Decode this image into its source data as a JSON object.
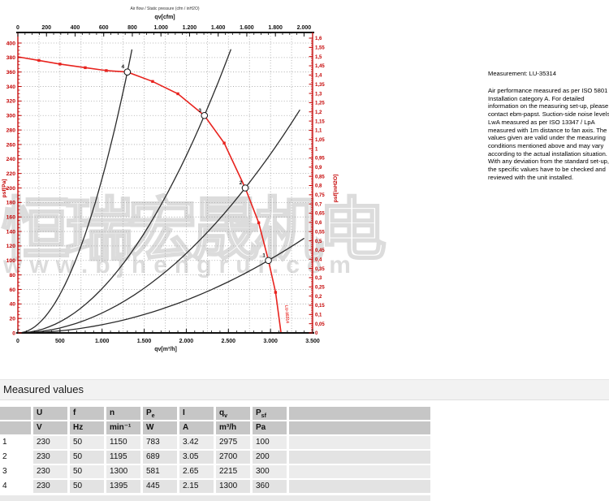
{
  "colors": {
    "axis_red": "#c40000",
    "curve_red": "#e8231e",
    "curve_black": "#2b2b2b",
    "grid": "#a0a0a0",
    "table_header_bg": "#c6c6c6",
    "watermark_gray": "#d4d4d4"
  },
  "watermark": {
    "company": "恒瑞宏晟机电",
    "website": "www.bjhengrui.com"
  },
  "chart_data": {
    "type": "line",
    "subtitle": "Air flow / Static pressure (cfm / inH2O)",
    "axes": {
      "top": {
        "label": "qv[cfm]",
        "min": 0,
        "max": 2000,
        "major": 200,
        "minor": 50,
        "tick_labels": [
          "0",
          "200",
          "400",
          "600",
          "800",
          "1.000",
          "1.200",
          "1.400",
          "1.600",
          "1.800",
          "2.000"
        ]
      },
      "bottom": {
        "label": "qv[m³/h]",
        "min": 0,
        "max": 3500,
        "major": 500,
        "minor": 100,
        "tick_labels": [
          "0",
          "500",
          "1.000",
          "1.500",
          "2.000",
          "2.500",
          "3.000",
          "3.500"
        ]
      },
      "left": {
        "label": "psf[Pa]",
        "min": 0,
        "max": 400,
        "major": 20,
        "minor": 5,
        "tick_labels": [
          "0",
          "20",
          "40",
          "60",
          "80",
          "100",
          "120",
          "140",
          "160",
          "180",
          "200",
          "220",
          "240",
          "260",
          "280",
          "300",
          "320",
          "340",
          "360",
          "380",
          "400"
        ]
      },
      "right": {
        "label": "psf[inH2O]",
        "min": 0,
        "max": 1.6,
        "major": 0.05,
        "minor": 0.01,
        "tick_labels": [
          "0",
          "0,05",
          "0,1",
          "0,15",
          "0,2",
          "0,25",
          "0,3",
          "0,35",
          "0,4",
          "0,45",
          "0,5",
          "0,55",
          "0,6",
          "0,65",
          "0,7",
          "0,75",
          "0,8",
          "0,85",
          "0,9",
          "0,95",
          "1",
          "1,05",
          "1,1",
          "1,15",
          "1,2",
          "1,25",
          "1,3",
          "1,35",
          "1,4",
          "1,45",
          "1,5",
          "1,55",
          "1,6"
        ]
      }
    },
    "fan_curve": {
      "name": "air-performance-curve",
      "end_label": "LU-35314",
      "points": [
        [
          0,
          381
        ],
        [
          250,
          376
        ],
        [
          500,
          371
        ],
        [
          800,
          366
        ],
        [
          1050,
          362
        ],
        [
          1300,
          360
        ],
        [
          1600,
          347
        ],
        [
          1900,
          330
        ],
        [
          2215,
          300
        ],
        [
          2450,
          262
        ],
        [
          2700,
          200
        ],
        [
          2860,
          152
        ],
        [
          2975,
          100
        ],
        [
          3060,
          56
        ],
        [
          3125,
          0
        ]
      ],
      "marker_points": [
        [
          250,
          376
        ],
        [
          500,
          371
        ],
        [
          800,
          366
        ],
        [
          1050,
          362
        ],
        [
          1600,
          347
        ],
        [
          1900,
          330
        ],
        [
          2450,
          262
        ],
        [
          2860,
          152
        ],
        [
          3060,
          56
        ]
      ]
    },
    "system_curves": [
      {
        "point": 4,
        "qv": 1300,
        "psf": 360,
        "qv_end": 1355
      },
      {
        "point": 3,
        "qv": 2215,
        "psf": 300,
        "qv_end": 2530
      },
      {
        "point": 2,
        "qv": 2700,
        "psf": 200,
        "qv_end": 3350
      },
      {
        "point": 1,
        "qv": 2975,
        "psf": 100,
        "qv_end": 3400
      }
    ],
    "working_points": [
      {
        "n": 1,
        "qv": 2975,
        "psf": 100
      },
      {
        "n": 2,
        "qv": 2700,
        "psf": 200
      },
      {
        "n": 3,
        "qv": 2215,
        "psf": 300
      },
      {
        "n": 4,
        "qv": 1300,
        "psf": 360
      }
    ]
  },
  "info_panel": {
    "measurement": "Measurement: LU-35314",
    "body": "Air performance measured as per ISO 5801 Installation category A. For detailed information on the measuring set-up, please contact ebm-papst. Suction-side noise levels: LwA measured as per ISO 13347 / LpA measured with 1m distance to fan axis. The values given are valid under the measuring conditions mentioned above and may vary according to the actual installation situation. With any deviation from the standard set-up, the specific values have to be checked and reviewed with the unit installed."
  },
  "table": {
    "title": "Measured values",
    "columns": [
      {
        "t": ""
      },
      {
        "t": "U"
      },
      {
        "t": "f"
      },
      {
        "t": "n"
      },
      {
        "t": "P",
        "sub": "e"
      },
      {
        "t": "I"
      },
      {
        "t": "q",
        "sub": "v"
      },
      {
        "t": "P",
        "sub": "sf"
      }
    ],
    "units": [
      "",
      "V",
      "Hz",
      "min⁻¹",
      "W",
      "A",
      "m³/h",
      "Pa"
    ],
    "rows": [
      [
        "1",
        "230",
        "50",
        "1150",
        "783",
        "3.42",
        "2975",
        "100"
      ],
      [
        "2",
        "230",
        "50",
        "1195",
        "689",
        "3.05",
        "2700",
        "200"
      ],
      [
        "3",
        "230",
        "50",
        "1300",
        "581",
        "2.65",
        "2215",
        "300"
      ],
      [
        "4",
        "230",
        "50",
        "1395",
        "445",
        "2.15",
        "1300",
        "360"
      ]
    ]
  }
}
